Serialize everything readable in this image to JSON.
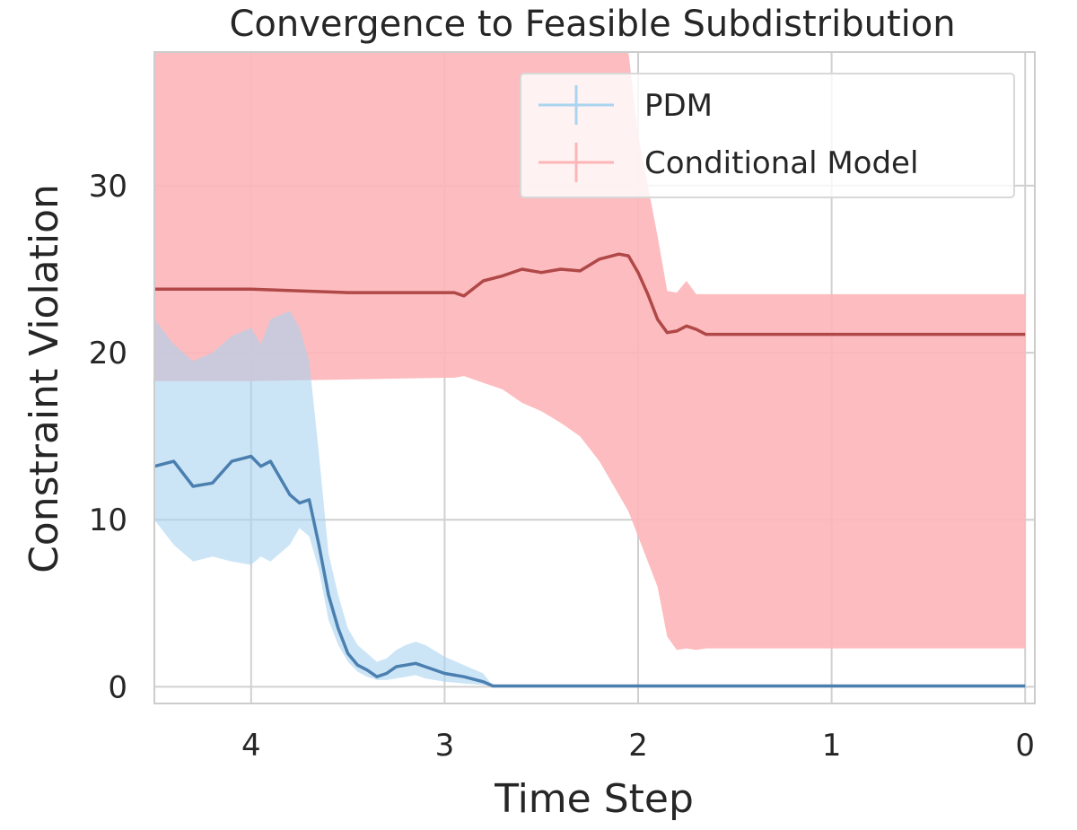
{
  "chart_data": {
    "type": "line",
    "title": "Convergence to Feasible Subdistribution",
    "xlabel": "Time Step",
    "ylabel": "Constraint Violation",
    "xlim": [
      4.5,
      -0.05
    ],
    "ylim": [
      -1,
      38
    ],
    "x_reversed": true,
    "grid": true,
    "legend_position": "top-right",
    "xticks": [
      4,
      3,
      2,
      1,
      0
    ],
    "yticks": [
      0,
      10,
      20,
      30
    ],
    "series": [
      {
        "name": "PDM",
        "line_color": "#4a7fb0",
        "band_color": "#aad4f0",
        "x": [
          4.5,
          4.4,
          4.3,
          4.2,
          4.1,
          4.0,
          3.95,
          3.9,
          3.8,
          3.75,
          3.7,
          3.65,
          3.6,
          3.55,
          3.5,
          3.45,
          3.4,
          3.35,
          3.3,
          3.25,
          3.2,
          3.15,
          3.1,
          3.0,
          2.9,
          2.8,
          2.75,
          2.0,
          1.0,
          0.0
        ],
        "y": [
          13.2,
          13.5,
          12.0,
          12.2,
          13.5,
          13.8,
          13.2,
          13.5,
          11.5,
          11.0,
          11.2,
          8.5,
          5.5,
          3.5,
          2.0,
          1.3,
          1.0,
          0.6,
          0.8,
          1.2,
          1.3,
          1.4,
          1.2,
          0.8,
          0.6,
          0.3,
          0.05,
          0.05,
          0.05,
          0.05
        ],
        "lower": [
          10.0,
          8.5,
          7.5,
          7.8,
          7.5,
          7.3,
          7.8,
          7.5,
          8.5,
          9.5,
          9.0,
          7.0,
          4.0,
          2.5,
          1.5,
          0.9,
          0.6,
          0.4,
          0.4,
          0.5,
          0.6,
          0.7,
          0.5,
          0.3,
          0.2,
          0.1,
          0.05,
          0.05,
          0.05,
          0.05
        ],
        "upper": [
          22.0,
          20.5,
          19.5,
          20.0,
          21.0,
          21.5,
          20.5,
          22.0,
          22.5,
          21.5,
          19.5,
          14.0,
          8.0,
          5.5,
          3.5,
          2.5,
          2.0,
          1.5,
          1.7,
          2.2,
          2.5,
          2.7,
          2.5,
          1.8,
          1.3,
          0.8,
          0.05,
          0.05,
          0.05,
          0.05
        ]
      },
      {
        "name": "Conditional Model",
        "line_color": "#b04848",
        "band_color": "#fdb5b8",
        "x": [
          4.5,
          4.0,
          3.5,
          3.0,
          2.95,
          2.9,
          2.8,
          2.7,
          2.6,
          2.5,
          2.4,
          2.3,
          2.2,
          2.1,
          2.05,
          2.0,
          1.95,
          1.9,
          1.85,
          1.8,
          1.75,
          1.7,
          1.65,
          1.5,
          1.0,
          0.5,
          0.0
        ],
        "y": [
          23.8,
          23.8,
          23.6,
          23.6,
          23.6,
          23.4,
          24.3,
          24.6,
          25.0,
          24.8,
          25.0,
          24.9,
          25.6,
          25.9,
          25.8,
          24.8,
          23.5,
          22.0,
          21.2,
          21.3,
          21.6,
          21.4,
          21.1,
          21.1,
          21.1,
          21.1,
          21.1
        ],
        "lower": [
          18.3,
          18.3,
          18.4,
          18.5,
          18.5,
          18.6,
          18.2,
          17.8,
          17.0,
          16.5,
          15.8,
          15.0,
          13.5,
          11.5,
          10.5,
          9.0,
          7.5,
          6.0,
          3.0,
          2.2,
          2.3,
          2.2,
          2.3,
          2.3,
          2.3,
          2.3,
          2.3
        ],
        "upper": [
          38.0,
          38.0,
          38.0,
          38.0,
          38.0,
          38.0,
          38.0,
          38.0,
          38.0,
          38.0,
          38.0,
          38.0,
          38.0,
          38.0,
          38.0,
          33.0,
          30.0,
          27.0,
          23.7,
          23.6,
          24.3,
          23.5,
          23.5,
          23.5,
          23.5,
          23.5,
          23.5
        ]
      }
    ]
  }
}
